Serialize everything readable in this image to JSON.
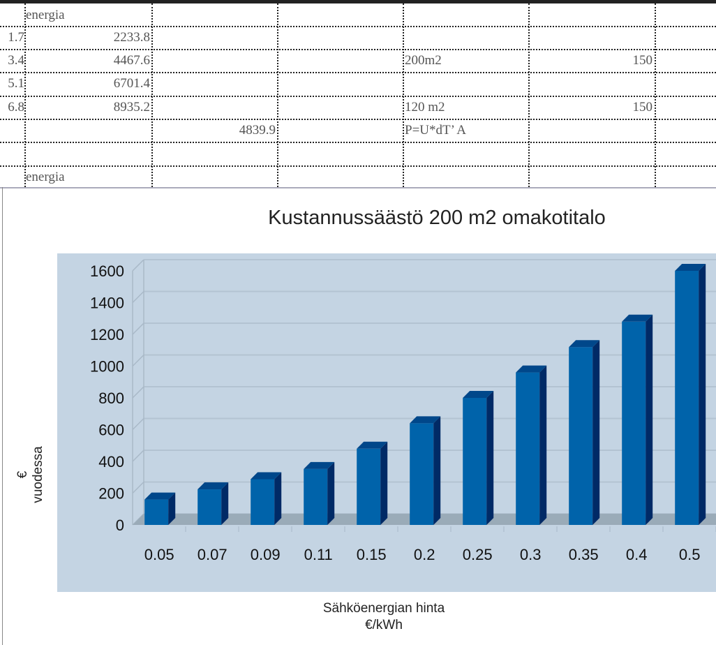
{
  "sheet": {
    "rows": [
      {
        "b": "energia"
      },
      {
        "a": "1.7",
        "b": "2233.8"
      },
      {
        "a": "3.4",
        "b": "4467.6",
        "e": "200m2",
        "f": "150"
      },
      {
        "a": "5.1",
        "b": "6701.4"
      },
      {
        "a": "6.8",
        "b": "8935.2",
        "e": "120 m2",
        "f": "150"
      },
      {
        "c": "4839.9",
        "e": "P=U*dT’  A"
      },
      {},
      {
        "b": "energia"
      }
    ]
  },
  "chart_data": {
    "type": "bar",
    "title": "Kustannussäästö 200 m2 omakotitalo",
    "xlabel": [
      "Sähköenergian hinta",
      "€/kWh"
    ],
    "ylabel": [
      "€",
      "vuodessa"
    ],
    "categories": [
      "0.05",
      "0.07",
      "0.09",
      "0.11",
      "0.15",
      "0.2",
      "0.25",
      "0.3",
      "0.35",
      "0.4",
      "0.5"
    ],
    "values": [
      160,
      224,
      288,
      352,
      480,
      640,
      800,
      960,
      1120,
      1280,
      1600
    ],
    "ylim": [
      0,
      1600
    ],
    "yticks": [
      "0",
      "200",
      "400",
      "600",
      "800",
      "1000",
      "1200",
      "1400",
      "1600"
    ],
    "grid": true,
    "style": "3d-column",
    "colors": {
      "bar": "#0063aa",
      "bar_side": "#002a66",
      "bar_top": "#00478a",
      "background": "#c4d4e3",
      "floor": "#9aabb8"
    }
  }
}
